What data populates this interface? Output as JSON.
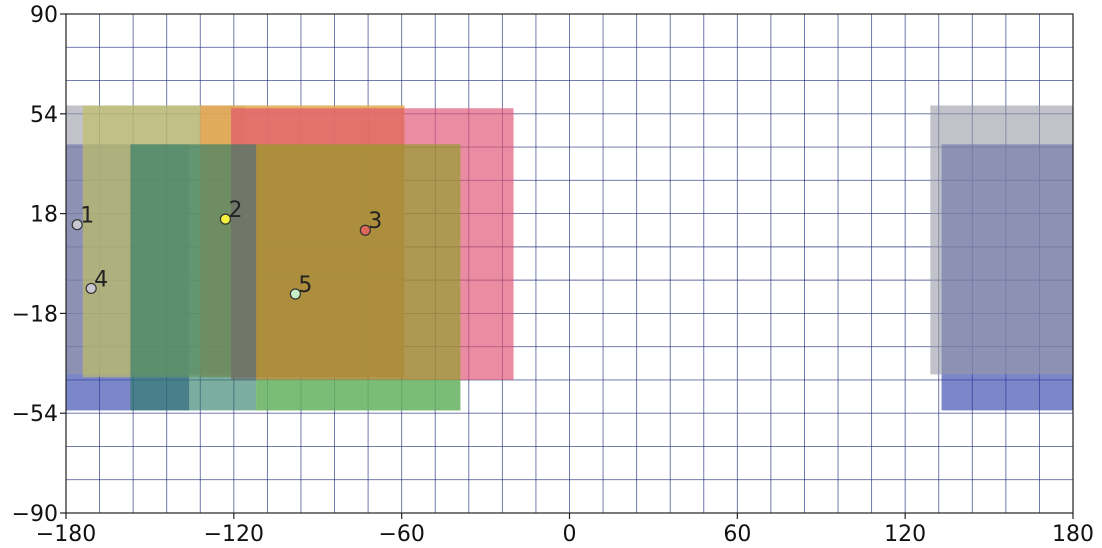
{
  "chart_data": {
    "type": "scatter",
    "title": "",
    "xlabel": "",
    "ylabel": "",
    "xlim": [
      -180,
      180
    ],
    "ylim": [
      -90,
      90
    ],
    "x_ticks": [
      -180,
      -120,
      -60,
      0,
      60,
      120,
      180
    ],
    "y_ticks": [
      -90,
      -54,
      -18,
      18,
      54,
      90
    ],
    "x_tick_labels": [
      "−180",
      "−120",
      "−60",
      "0",
      "60",
      "120",
      "180"
    ],
    "y_tick_labels": [
      "−90",
      "−54",
      "−18",
      "18",
      "54",
      "90"
    ],
    "grid": true,
    "grid_step_x": 12,
    "grid_step_y": 12,
    "regions": [
      {
        "id": 1,
        "color": "#2a3ea8",
        "opacity": 0.62,
        "bounds": [
          [
            -180,
            -53
          ],
          [
            -136,
            43
          ]
        ]
      },
      {
        "id": 1,
        "color": "#2a3ea8",
        "opacity": 0.62,
        "bounds": [
          [
            133,
            -53
          ],
          [
            180,
            43
          ]
        ]
      },
      {
        "id": 2,
        "color": "#9a9aa6",
        "opacity": 0.6,
        "bounds": [
          [
            -180,
            -40
          ],
          [
            -116,
            57
          ]
        ]
      },
      {
        "id": 2,
        "color": "#9a9aa6",
        "opacity": 0.6,
        "bounds": [
          [
            129,
            -40
          ],
          [
            180,
            57
          ]
        ]
      },
      {
        "id": 3,
        "color": "#c2c060",
        "opacity": 0.65,
        "bounds": [
          [
            -174,
            -41
          ],
          [
            -59,
            57
          ]
        ]
      },
      {
        "id": 4,
        "color": "#f0a048",
        "opacity": 0.65,
        "bounds": [
          [
            -132,
            -41
          ],
          [
            -59,
            57
          ]
        ]
      },
      {
        "id": 5,
        "color": "#e05070",
        "opacity": 0.65,
        "bounds": [
          [
            -121,
            -42
          ],
          [
            -20,
            56
          ]
        ]
      },
      {
        "id": 6,
        "color": "#2a7a66",
        "opacity": 0.62,
        "bounds": [
          [
            -157,
            -53
          ],
          [
            -112,
            43
          ]
        ]
      },
      {
        "id": 7,
        "color": "#8aa020",
        "opacity": 0.62,
        "bounds": [
          [
            -112,
            -53
          ],
          [
            -39,
            43
          ]
        ]
      },
      {
        "id": 8,
        "color": "#55b878",
        "opacity": 0.62,
        "bounds": [
          [
            -112,
            -53
          ],
          [
            -39,
            -42
          ]
        ]
      }
    ],
    "points": [
      {
        "label": "1",
        "x": -176,
        "y": 14,
        "color": "#c8c8d2"
      },
      {
        "label": "2",
        "x": -123,
        "y": 16,
        "color": "#f4f040"
      },
      {
        "label": "3",
        "x": -73,
        "y": 12,
        "color": "#e06858"
      },
      {
        "label": "4",
        "x": -171,
        "y": -9,
        "color": "#c8c8d2"
      },
      {
        "label": "5",
        "x": -98,
        "y": -11,
        "color": "#c8f0c8"
      }
    ],
    "colors": {
      "grid": "#1e2a7a",
      "axis": "#222222",
      "point_edge": "#333333"
    }
  }
}
